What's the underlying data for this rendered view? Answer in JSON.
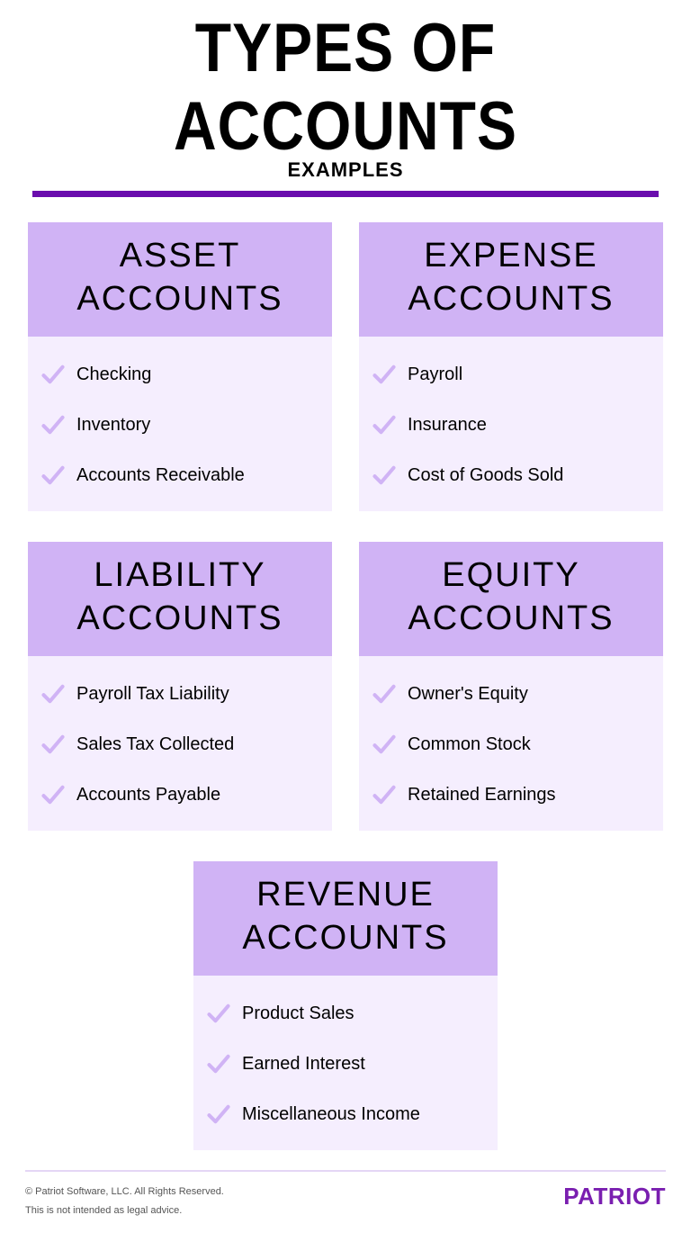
{
  "title": "TYPES OF ACCOUNTS",
  "subtitle": "EXAMPLES",
  "colors": {
    "divider": "#6a0dad",
    "card_header_bg": "#d0b3f5",
    "card_body_bg": "#f5eefe",
    "check_stroke": "#d0b3f5",
    "brand": "#7a1fb0",
    "footer_line": "#e4d6f5"
  },
  "typography": {
    "title_fontsize": 66,
    "subtitle_fontsize": 22,
    "card_header_fontsize": 38,
    "item_fontsize": 20,
    "legal_fontsize": 11,
    "brand_fontsize": 26
  },
  "cards": [
    {
      "title_line1": "ASSET",
      "title_line2": "ACCOUNTS",
      "items": [
        "Checking",
        "Inventory",
        "Accounts Receivable"
      ]
    },
    {
      "title_line1": "EXPENSE",
      "title_line2": "ACCOUNTS",
      "items": [
        "Payroll",
        "Insurance",
        "Cost of Goods Sold"
      ]
    },
    {
      "title_line1": "LIABILITY",
      "title_line2": "ACCOUNTS",
      "items": [
        "Payroll Tax Liability",
        "Sales Tax Collected",
        "Accounts Payable"
      ]
    },
    {
      "title_line1": "EQUITY",
      "title_line2": "ACCOUNTS",
      "items": [
        "Owner's Equity",
        "Common Stock",
        "Retained Earnings"
      ]
    },
    {
      "title_line1": "REVENUE",
      "title_line2": "ACCOUNTS",
      "items": [
        "Product Sales",
        "Earned Interest",
        "Miscellaneous Income"
      ]
    }
  ],
  "footer": {
    "copyright": "© Patriot Software, LLC. All Rights Reserved.",
    "disclaimer": "This is not intended as legal advice.",
    "brand": "PATRIOT"
  }
}
